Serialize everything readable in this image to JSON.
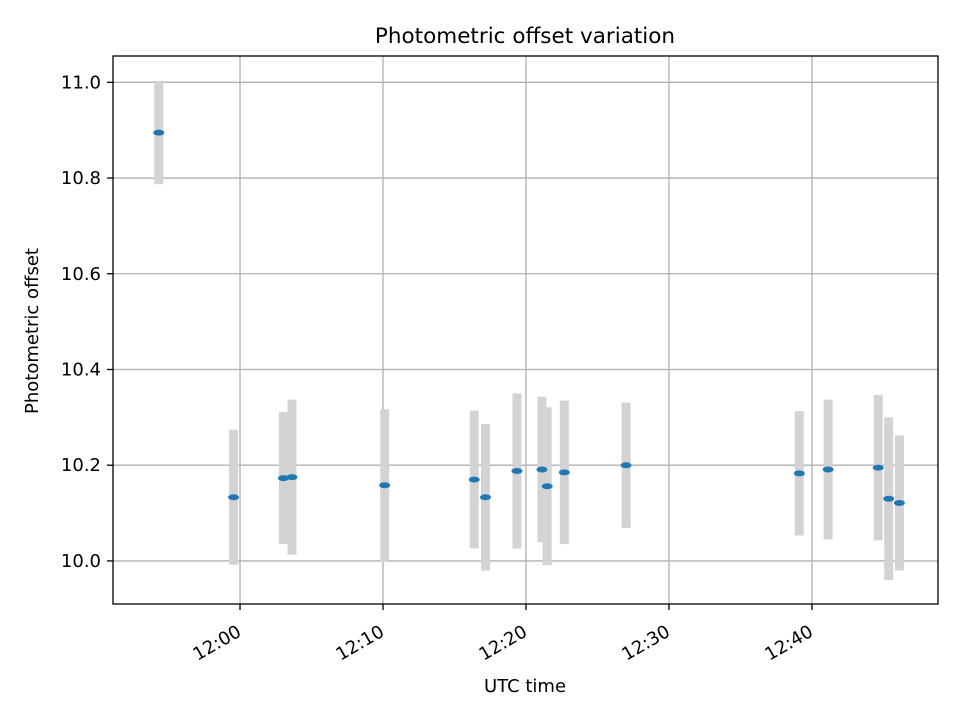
{
  "chart_data": {
    "type": "scatter",
    "title": "Photometric offset variation",
    "xlabel": "UTC time",
    "ylabel": "Photometric offset",
    "xlim": [
      "11:51:07",
      "12:48:49"
    ],
    "ylim": [
      9.91,
      11.055
    ],
    "x_ticks": [
      "12:00",
      "12:10",
      "12:20",
      "12:30",
      "12:40"
    ],
    "y_ticks": [
      "10.0",
      "10.2",
      "10.4",
      "10.6",
      "10.8",
      "11.0"
    ],
    "grid": true,
    "colors": {
      "marker": "#1f77b4",
      "errorbar": "#d3d3d3",
      "grid": "#b0b0b0"
    },
    "points": [
      {
        "x": "11:54:19",
        "y": 10.895,
        "err": 0.108
      },
      {
        "x": "11:59:33",
        "y": 10.133,
        "err": 0.141
      },
      {
        "x": "12:03:02",
        "y": 10.173,
        "err": 0.138
      },
      {
        "x": "12:03:38",
        "y": 10.175,
        "err": 0.162
      },
      {
        "x": "12:10:07",
        "y": 10.158,
        "err": 0.159
      },
      {
        "x": "12:16:23",
        "y": 10.17,
        "err": 0.144
      },
      {
        "x": "12:17:10",
        "y": 10.133,
        "err": 0.153
      },
      {
        "x": "12:19:22",
        "y": 10.188,
        "err": 0.162
      },
      {
        "x": "12:21:07",
        "y": 10.191,
        "err": 0.152
      },
      {
        "x": "12:21:29",
        "y": 10.156,
        "err": 0.165
      },
      {
        "x": "12:22:41",
        "y": 10.185,
        "err": 0.15
      },
      {
        "x": "12:27:00",
        "y": 10.2,
        "err": 0.131
      },
      {
        "x": "12:39:07",
        "y": 10.183,
        "err": 0.13
      },
      {
        "x": "12:41:08",
        "y": 10.191,
        "err": 0.146
      },
      {
        "x": "12:44:38",
        "y": 10.195,
        "err": 0.152
      },
      {
        "x": "12:45:22",
        "y": 10.13,
        "err": 0.17
      },
      {
        "x": "12:46:07",
        "y": 10.121,
        "err": 0.141
      }
    ]
  }
}
